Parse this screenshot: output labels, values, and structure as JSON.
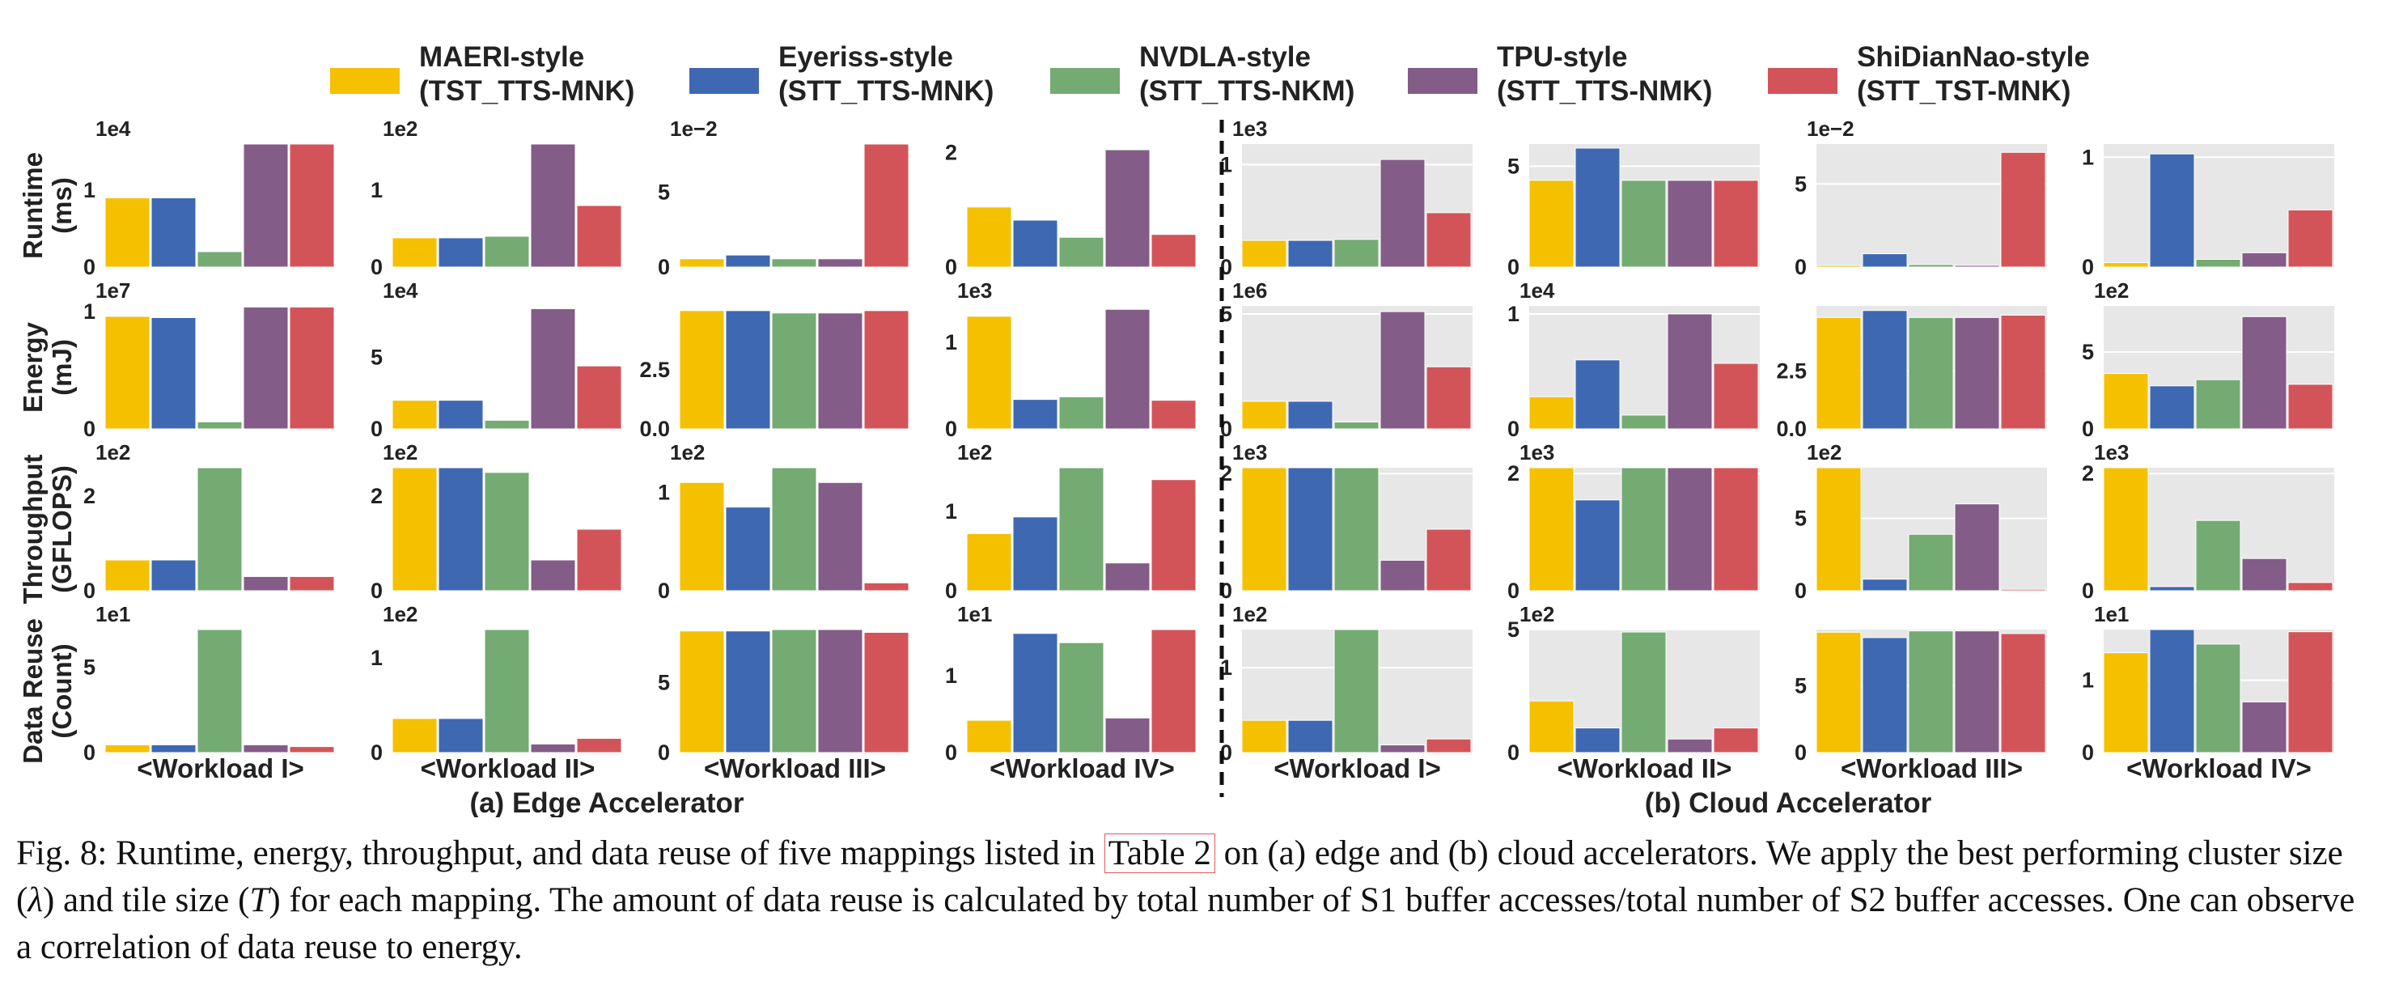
{
  "legend": [
    {
      "name": "MAERI-style",
      "sub": "(TST_TTS-MNK)",
      "color": "#f5c000"
    },
    {
      "name": "Eyeriss-style",
      "sub": "(STT_TTS-MNK)",
      "color": "#3f68b3"
    },
    {
      "name": "NVDLA-style",
      "sub": "(STT_TTS-NKM)",
      "color": "#74ab73"
    },
    {
      "name": "TPU-style",
      "sub": "(STT_TTS-NMK)",
      "color": "#845c88"
    },
    {
      "name": "ShiDianNao-style",
      "sub": "(STT_TST-MNK)",
      "color": "#d35458"
    }
  ],
  "row_labels": [
    {
      "line1": "Runtime",
      "line2": "(ms)"
    },
    {
      "line1": "Energy",
      "line2": "(mJ)"
    },
    {
      "line1": "Throughput",
      "line2": "(GFLOPS)"
    },
    {
      "line1": "Data Reuse",
      "line2": "(Count)"
    }
  ],
  "workloads": [
    "<Workload I>",
    "<Workload II>",
    "<Workload III>",
    "<Workload IV>",
    "<Workload I>",
    "<Workload II>",
    "<Workload III>",
    "<Workload IV>"
  ],
  "group_labels": {
    "edge": "(a) Edge Accelerator",
    "cloud": "(b) Cloud Accelerator"
  },
  "caption": {
    "part1": "Fig. 8: Runtime, energy, throughput, and data reuse of five mappings listed in ",
    "table_ref": "Table 2",
    "part2": " on (a) edge and (b) cloud accelerators. We apply the best performing cluster size (",
    "lambda": "λ",
    "part3": ") and tile size (",
    "tee": "T",
    "part4": ") for each mapping. The amount of data reuse is calculated by total number of S1 buffer accesses/total number of S2 buffer accesses. One can observe a correlation of data reuse to energy."
  },
  "chart_data": {
    "type": "bar",
    "series": [
      "MAERI-style",
      "Eyeriss-style",
      "NVDLA-style",
      "TPU-style",
      "ShiDianNao-style"
    ],
    "panels": [
      {
        "row": 0,
        "col": 0,
        "multiplier": "1e4",
        "ylim": [
          0,
          1.6
        ],
        "ticks": [
          {
            "v": 0,
            "t": "0"
          },
          {
            "v": 1,
            "t": "1"
          }
        ],
        "values": [
          0.9,
          0.9,
          0.2,
          1.6,
          1.6
        ]
      },
      {
        "row": 0,
        "col": 1,
        "multiplier": "1e2",
        "ylim": [
          0,
          1.6
        ],
        "ticks": [
          {
            "v": 0,
            "t": "0"
          },
          {
            "v": 1,
            "t": "1"
          }
        ],
        "values": [
          0.38,
          0.38,
          0.4,
          1.6,
          0.8
        ]
      },
      {
        "row": 0,
        "col": 2,
        "multiplier": "1e−2",
        "ylim": [
          0,
          8.2
        ],
        "ticks": [
          {
            "v": 0,
            "t": "0"
          },
          {
            "v": 5,
            "t": "5"
          }
        ],
        "values": [
          0.55,
          0.8,
          0.55,
          0.55,
          8.2
        ]
      },
      {
        "row": 0,
        "col": 3,
        "multiplier": "",
        "ylim": [
          0,
          2.15
        ],
        "ticks": [
          {
            "v": 0,
            "t": "0"
          },
          {
            "v": 2,
            "t": "2"
          }
        ],
        "values": [
          1.05,
          0.82,
          0.52,
          2.05,
          0.57
        ]
      },
      {
        "row": 0,
        "col": 4,
        "multiplier": "1e3",
        "ylim": [
          0,
          1.2
        ],
        "ticks": [
          {
            "v": 0,
            "t": "0"
          },
          {
            "v": 1,
            "t": "1"
          }
        ],
        "values": [
          0.26,
          0.26,
          0.27,
          1.05,
          0.53
        ]
      },
      {
        "row": 0,
        "col": 5,
        "multiplier": "",
        "ylim": [
          0,
          6.1
        ],
        "ticks": [
          {
            "v": 0,
            "t": "0"
          },
          {
            "v": 5,
            "t": "5"
          }
        ],
        "values": [
          4.3,
          5.9,
          4.3,
          4.3,
          4.3
        ]
      },
      {
        "row": 0,
        "col": 6,
        "multiplier": "1e−2",
        "ylim": [
          0,
          7.4
        ],
        "ticks": [
          {
            "v": 0,
            "t": "0"
          },
          {
            "v": 5,
            "t": "5"
          }
        ],
        "values": [
          0.1,
          0.8,
          0.15,
          0.1,
          6.9
        ]
      },
      {
        "row": 0,
        "col": 7,
        "multiplier": "",
        "ylim": [
          0,
          1.12
        ],
        "ticks": [
          {
            "v": 0,
            "t": "0"
          },
          {
            "v": 1,
            "t": "1"
          }
        ],
        "values": [
          0.04,
          1.03,
          0.07,
          0.13,
          0.52
        ]
      },
      {
        "row": 1,
        "col": 0,
        "multiplier": "1e7",
        "ylim": [
          0,
          1.05
        ],
        "ticks": [
          {
            "v": 0,
            "t": "0"
          },
          {
            "v": 1,
            "t": "1"
          }
        ],
        "values": [
          0.96,
          0.95,
          0.06,
          1.04,
          1.04
        ]
      },
      {
        "row": 1,
        "col": 1,
        "multiplier": "1e4",
        "ylim": [
          0,
          8.6
        ],
        "ticks": [
          {
            "v": 0,
            "t": "0"
          },
          {
            "v": 5,
            "t": "5"
          }
        ],
        "values": [
          2.0,
          2.0,
          0.6,
          8.4,
          4.4
        ]
      },
      {
        "row": 1,
        "col": 2,
        "multiplier": "",
        "ylim": [
          0,
          5.2
        ],
        "ticks": [
          {
            "v": 0,
            "t": "0.0"
          },
          {
            "v": 2.5,
            "t": "2.5"
          }
        ],
        "values": [
          5.0,
          5.0,
          4.9,
          4.9,
          5.0
        ]
      },
      {
        "row": 1,
        "col": 3,
        "multiplier": "1e3",
        "ylim": [
          0,
          1.42
        ],
        "ticks": [
          {
            "v": 0,
            "t": "0"
          },
          {
            "v": 1,
            "t": "1"
          }
        ],
        "values": [
          1.3,
          0.34,
          0.37,
          1.38,
          0.33
        ]
      },
      {
        "row": 1,
        "col": 4,
        "multiplier": "1e6",
        "ylim": [
          0,
          5.35
        ],
        "ticks": [
          {
            "v": 0,
            "t": "0"
          },
          {
            "v": 5,
            "t": "5"
          }
        ],
        "values": [
          1.2,
          1.2,
          0.3,
          5.1,
          2.7
        ]
      },
      {
        "row": 1,
        "col": 5,
        "multiplier": "1e4",
        "ylim": [
          0,
          1.07
        ],
        "ticks": [
          {
            "v": 0,
            "t": "0"
          },
          {
            "v": 1,
            "t": "1"
          }
        ],
        "values": [
          0.28,
          0.6,
          0.12,
          1.0,
          0.57
        ]
      },
      {
        "row": 1,
        "col": 6,
        "multiplier": "",
        "ylim": [
          0,
          5.3
        ],
        "ticks": [
          {
            "v": 0,
            "t": "0.0"
          },
          {
            "v": 2.5,
            "t": "2.5"
          }
        ],
        "values": [
          4.8,
          5.1,
          4.8,
          4.8,
          4.9
        ]
      },
      {
        "row": 1,
        "col": 7,
        "multiplier": "1e2",
        "ylim": [
          0,
          8.0
        ],
        "ticks": [
          {
            "v": 0,
            "t": "0"
          },
          {
            "v": 5,
            "t": "5"
          }
        ],
        "values": [
          3.6,
          2.8,
          3.2,
          7.3,
          2.9
        ]
      },
      {
        "row": 2,
        "col": 0,
        "multiplier": "1e2",
        "ylim": [
          0,
          2.6
        ],
        "ticks": [
          {
            "v": 0,
            "t": "0"
          },
          {
            "v": 2,
            "t": "2"
          }
        ],
        "values": [
          0.65,
          0.65,
          2.6,
          0.3,
          0.3
        ]
      },
      {
        "row": 2,
        "col": 1,
        "multiplier": "1e2",
        "ylim": [
          0,
          2.6
        ],
        "ticks": [
          {
            "v": 0,
            "t": "0"
          },
          {
            "v": 2,
            "t": "2"
          }
        ],
        "values": [
          2.6,
          2.6,
          2.5,
          0.65,
          1.3
        ]
      },
      {
        "row": 2,
        "col": 2,
        "multiplier": "1e2",
        "ylim": [
          0,
          1.25
        ],
        "ticks": [
          {
            "v": 0,
            "t": "0"
          },
          {
            "v": 1,
            "t": "1"
          }
        ],
        "values": [
          1.1,
          0.85,
          1.25,
          1.1,
          0.08
        ]
      },
      {
        "row": 2,
        "col": 3,
        "multiplier": "1e2",
        "ylim": [
          0,
          1.55
        ],
        "ticks": [
          {
            "v": 0,
            "t": "0"
          },
          {
            "v": 1,
            "t": "1"
          }
        ],
        "values": [
          0.72,
          0.93,
          1.55,
          0.35,
          1.4
        ]
      },
      {
        "row": 2,
        "col": 4,
        "multiplier": "1e3",
        "ylim": [
          0,
          2.1
        ],
        "ticks": [
          {
            "v": 0,
            "t": "0"
          },
          {
            "v": 2,
            "t": "2"
          }
        ],
        "values": [
          2.1,
          2.1,
          2.1,
          0.52,
          1.05
        ]
      },
      {
        "row": 2,
        "col": 5,
        "multiplier": "1e3",
        "ylim": [
          0,
          2.1
        ],
        "ticks": [
          {
            "v": 0,
            "t": "0"
          },
          {
            "v": 2,
            "t": "2"
          }
        ],
        "values": [
          2.1,
          1.55,
          2.1,
          2.1,
          2.1
        ]
      },
      {
        "row": 2,
        "col": 6,
        "multiplier": "1e2",
        "ylim": [
          0,
          8.5
        ],
        "ticks": [
          {
            "v": 0,
            "t": "0"
          },
          {
            "v": 5,
            "t": "5"
          }
        ],
        "values": [
          8.5,
          0.8,
          3.9,
          6.0,
          0.1
        ]
      },
      {
        "row": 2,
        "col": 7,
        "multiplier": "1e3",
        "ylim": [
          0,
          2.1
        ],
        "ticks": [
          {
            "v": 0,
            "t": "0"
          },
          {
            "v": 2,
            "t": "2"
          }
        ],
        "values": [
          2.1,
          0.07,
          1.2,
          0.55,
          0.14
        ]
      },
      {
        "row": 3,
        "col": 0,
        "multiplier": "1e1",
        "ylim": [
          0,
          7.2
        ],
        "ticks": [
          {
            "v": 0,
            "t": "0"
          },
          {
            "v": 5,
            "t": "5"
          }
        ],
        "values": [
          0.45,
          0.45,
          7.2,
          0.45,
          0.35
        ]
      },
      {
        "row": 3,
        "col": 1,
        "multiplier": "1e2",
        "ylim": [
          0,
          1.3
        ],
        "ticks": [
          {
            "v": 0,
            "t": "0"
          },
          {
            "v": 1,
            "t": "1"
          }
        ],
        "values": [
          0.36,
          0.36,
          1.3,
          0.09,
          0.15
        ]
      },
      {
        "row": 3,
        "col": 2,
        "multiplier": "",
        "ylim": [
          0,
          8.8
        ],
        "ticks": [
          {
            "v": 0,
            "t": "0"
          },
          {
            "v": 5,
            "t": "5"
          }
        ],
        "values": [
          8.7,
          8.7,
          8.8,
          8.8,
          8.6
        ]
      },
      {
        "row": 3,
        "col": 3,
        "multiplier": "1e1",
        "ylim": [
          0,
          1.6
        ],
        "ticks": [
          {
            "v": 0,
            "t": "0"
          },
          {
            "v": 1,
            "t": "1"
          }
        ],
        "values": [
          0.42,
          1.55,
          1.43,
          0.45,
          1.6
        ]
      },
      {
        "row": 3,
        "col": 4,
        "multiplier": "1e2",
        "ylim": [
          0,
          1.45
        ],
        "ticks": [
          {
            "v": 0,
            "t": "0"
          },
          {
            "v": 1,
            "t": "1"
          }
        ],
        "values": [
          0.38,
          0.38,
          1.45,
          0.09,
          0.16
        ]
      },
      {
        "row": 3,
        "col": 5,
        "multiplier": "1e2",
        "ylim": [
          0,
          5.0
        ],
        "ticks": [
          {
            "v": 0,
            "t": "0"
          },
          {
            "v": 5,
            "t": "5"
          }
        ],
        "values": [
          2.1,
          1.0,
          4.9,
          0.55,
          1.0
        ]
      },
      {
        "row": 3,
        "col": 6,
        "multiplier": "",
        "ylim": [
          0,
          9.2
        ],
        "ticks": [
          {
            "v": 0,
            "t": "0"
          },
          {
            "v": 5,
            "t": "5"
          }
        ],
        "values": [
          9.0,
          8.6,
          9.1,
          9.1,
          8.9
        ]
      },
      {
        "row": 3,
        "col": 7,
        "multiplier": "1e1",
        "ylim": [
          0,
          1.7
        ],
        "ticks": [
          {
            "v": 0,
            "t": "0"
          },
          {
            "v": 1,
            "t": "1"
          }
        ],
        "values": [
          1.38,
          1.7,
          1.5,
          0.7,
          1.67
        ]
      }
    ]
  }
}
